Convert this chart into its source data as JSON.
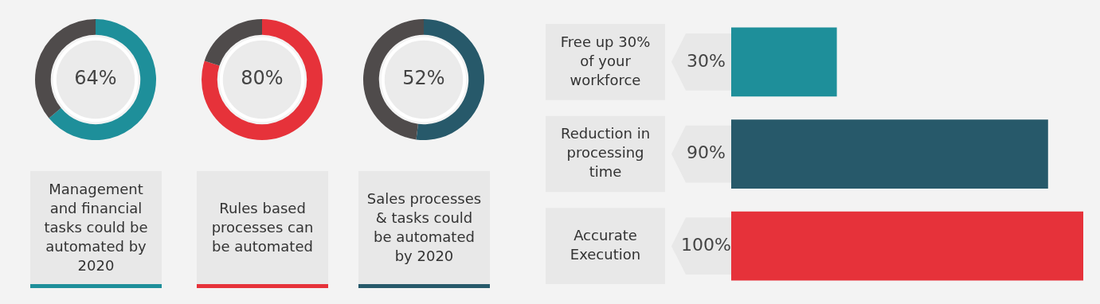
{
  "chart_data": [
    {
      "type": "donut",
      "title": "Management and financial tasks could be automated by 2020",
      "categories": [
        null,
        null
      ],
      "values": [
        64,
        36
      ],
      "colors": [
        "#1e8f9a",
        "#4f4b4b"
      ],
      "value_labels": [
        "64%",
        null
      ]
    },
    {
      "type": "donut",
      "title": "Rules based processes can be automated",
      "categories": [
        null,
        null
      ],
      "values": [
        80,
        20
      ],
      "colors": [
        "#e6323a",
        "#4f4b4b"
      ],
      "value_labels": [
        "80%",
        null
      ]
    },
    {
      "type": "donut",
      "title": "Sales processes & tasks could be automated by 2020",
      "categories": [
        null,
        null
      ],
      "values": [
        52,
        48
      ],
      "colors": [
        "#27596a",
        "#4f4b4b"
      ],
      "value_labels": [
        "52%",
        null
      ]
    },
    {
      "type": "bar",
      "orientation": "horizontal",
      "categories": [
        "Free up 30% of your workforce",
        "Reduction in processing time",
        "Accurate Execution"
      ],
      "values": [
        30,
        90,
        100
      ],
      "colors": [
        "#1e8f9a",
        "#27596a",
        "#e6323a"
      ],
      "value_labels": [
        "30%",
        "90%",
        "100%"
      ],
      "xlim": [
        0,
        100
      ],
      "tick_labels": "y"
    }
  ]
}
